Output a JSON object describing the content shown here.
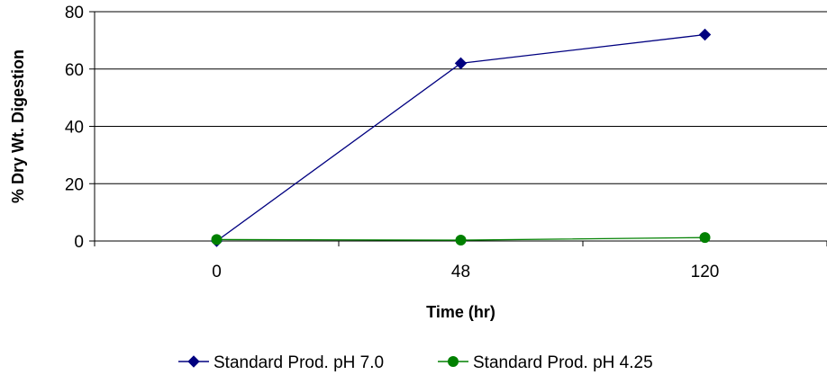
{
  "chart_data": {
    "type": "line",
    "title": "",
    "xlabel": "Time (hr)",
    "ylabel": "% Dry Wt. Digestion",
    "categories": [
      "0",
      "48",
      "120"
    ],
    "ylim": [
      0,
      80
    ],
    "yticks": [
      "0",
      "20",
      "40",
      "60",
      "80"
    ],
    "grid": true,
    "legend_position": "bottom",
    "series": [
      {
        "name": "Standard Prod. pH 7.0",
        "values": [
          0,
          62,
          72
        ],
        "color": "#000080",
        "marker": "diamond"
      },
      {
        "name": "Standard Prod. pH 4.25",
        "values": [
          0.5,
          0.3,
          1.2
        ],
        "color": "#008000",
        "marker": "circle"
      }
    ]
  }
}
